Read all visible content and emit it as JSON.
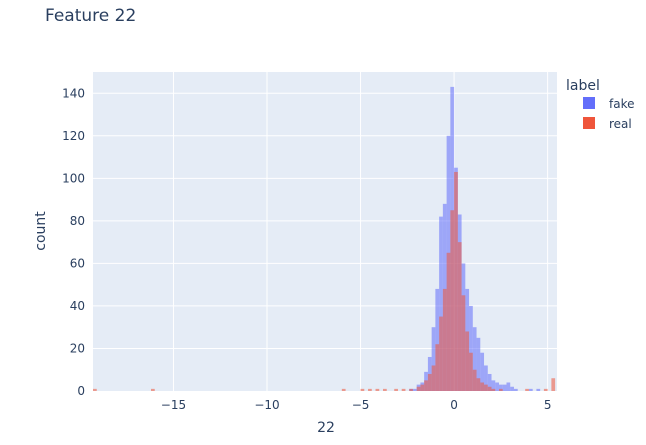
{
  "chart_data": {
    "type": "histogram",
    "title": "Feature 22",
    "xlabel": "22",
    "ylabel": "count",
    "xlim": [
      -19.3,
      5.5
    ],
    "ylim": [
      0,
      150
    ],
    "xticks": [
      -15,
      -10,
      -5,
      0,
      5
    ],
    "xtick_labels": [
      "−15",
      "−10",
      "−5",
      "0",
      "5"
    ],
    "yticks": [
      0,
      20,
      40,
      60,
      80,
      100,
      120,
      140
    ],
    "barmode": "overlay",
    "bin_width": 0.2,
    "legend": {
      "title": "label",
      "position": "right"
    },
    "series": [
      {
        "name": "fake",
        "color": "#636efa",
        "bins": [
          [
            -2.3,
            1
          ],
          [
            -2.1,
            1
          ],
          [
            -1.9,
            3
          ],
          [
            -1.7,
            4
          ],
          [
            -1.5,
            9
          ],
          [
            -1.3,
            16
          ],
          [
            -1.1,
            30
          ],
          [
            -0.9,
            48
          ],
          [
            -0.7,
            82
          ],
          [
            -0.5,
            88
          ],
          [
            -0.3,
            120
          ],
          [
            -0.1,
            143
          ],
          [
            0.1,
            105
          ],
          [
            0.3,
            83
          ],
          [
            0.5,
            60
          ],
          [
            0.7,
            48
          ],
          [
            0.9,
            40
          ],
          [
            1.1,
            30
          ],
          [
            1.3,
            25
          ],
          [
            1.5,
            18
          ],
          [
            1.7,
            12
          ],
          [
            1.9,
            8
          ],
          [
            2.1,
            5
          ],
          [
            2.3,
            4
          ],
          [
            2.5,
            3
          ],
          [
            2.7,
            3
          ],
          [
            2.9,
            4
          ],
          [
            3.1,
            2
          ],
          [
            3.3,
            1
          ],
          [
            4.1,
            1
          ],
          [
            4.5,
            1
          ]
        ]
      },
      {
        "name": "real",
        "color": "#ef553b",
        "bins": [
          [
            -19.2,
            1
          ],
          [
            -16.1,
            1
          ],
          [
            -5.9,
            1
          ],
          [
            -4.9,
            1
          ],
          [
            -4.5,
            1
          ],
          [
            -4.1,
            1
          ],
          [
            -3.7,
            1
          ],
          [
            -3.1,
            1
          ],
          [
            -2.7,
            1
          ],
          [
            -2.3,
            1
          ],
          [
            -1.9,
            2
          ],
          [
            -1.7,
            3
          ],
          [
            -1.5,
            5
          ],
          [
            -1.3,
            8
          ],
          [
            -1.1,
            12
          ],
          [
            -0.9,
            22
          ],
          [
            -0.7,
            35
          ],
          [
            -0.5,
            48
          ],
          [
            -0.3,
            65
          ],
          [
            -0.1,
            85
          ],
          [
            0.1,
            103
          ],
          [
            0.3,
            70
          ],
          [
            0.5,
            45
          ],
          [
            0.7,
            28
          ],
          [
            0.9,
            18
          ],
          [
            1.1,
            10
          ],
          [
            1.3,
            6
          ],
          [
            1.5,
            4
          ],
          [
            1.7,
            3
          ],
          [
            1.9,
            2
          ],
          [
            2.1,
            1
          ],
          [
            2.5,
            1
          ],
          [
            3.9,
            1
          ],
          [
            4.9,
            1
          ],
          [
            5.3,
            6
          ]
        ]
      }
    ]
  }
}
